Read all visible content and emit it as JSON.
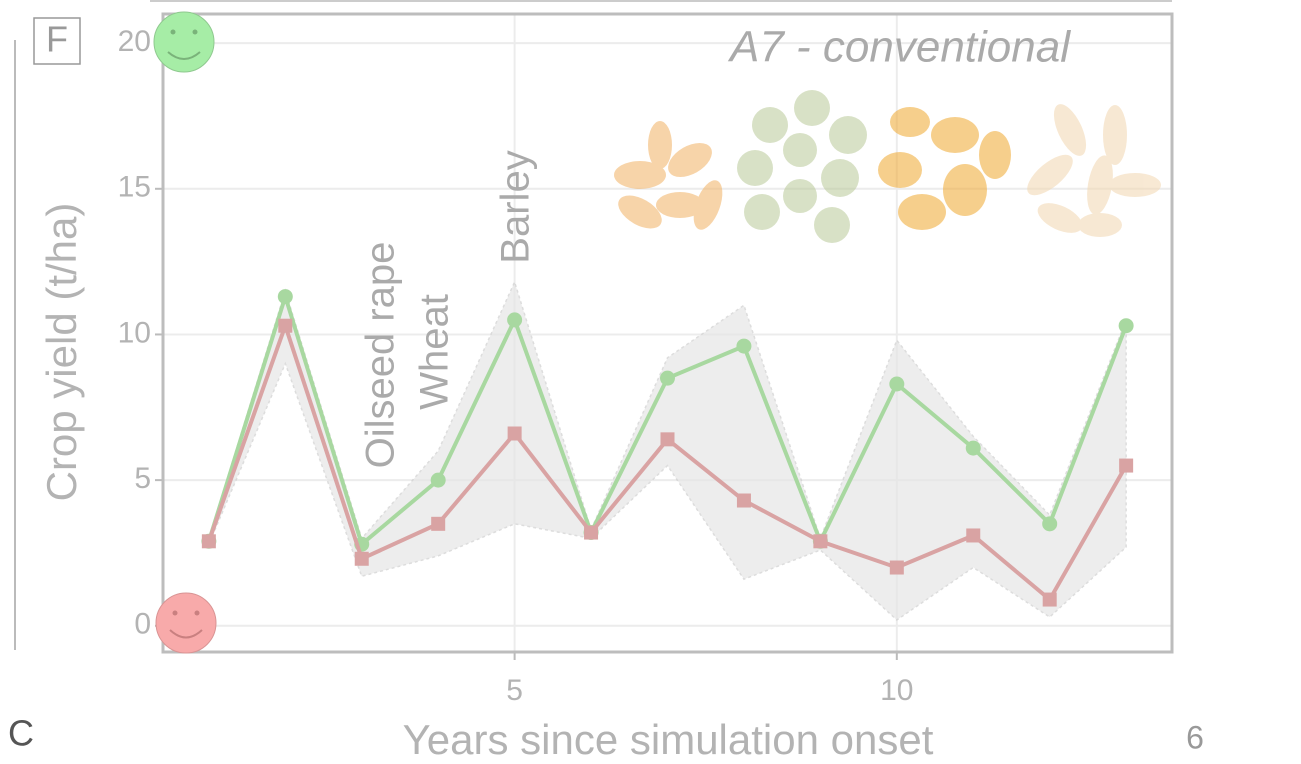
{
  "panel_label": "F",
  "stray_left": "C",
  "stray_right": "6",
  "chart_data": {
    "type": "line",
    "title": "A7 - conventional",
    "x_label": "Years since simulation onset",
    "y_label": "Crop yield (t/ha)",
    "annotations": [
      "Oilseed rape",
      "Wheat",
      "Barley"
    ],
    "x": [
      1,
      2,
      3,
      4,
      5,
      6,
      7,
      8,
      9,
      10,
      11,
      12,
      13
    ],
    "xlim": [
      0.4,
      13.6
    ],
    "ylim": [
      -0.9,
      21
    ],
    "xticks": [
      5,
      10
    ],
    "yticks": [
      0,
      5,
      10,
      15,
      20
    ],
    "grid": true,
    "band": {
      "color": "#e6e6e6",
      "lower": [
        2.8,
        9,
        1.7,
        2.4,
        3.5,
        3.0,
        5.5,
        1.6,
        2.6,
        0.2,
        2.0,
        0.3,
        2.7
      ],
      "upper": [
        3,
        11.5,
        3,
        6,
        11.8,
        3.3,
        9.2,
        11,
        3,
        9.8,
        6.5,
        3.8,
        10.5
      ]
    },
    "series": [
      {
        "color": "#a8d8a0",
        "marker": "circle",
        "values": [
          2.9,
          11.3,
          2.8,
          5.0,
          10.5,
          3.2,
          8.5,
          9.6,
          2.9,
          8.3,
          6.1,
          3.5,
          10.3
        ]
      },
      {
        "color": "#d9a3a3",
        "marker": "square",
        "values": [
          2.9,
          10.3,
          2.3,
          3.5,
          6.6,
          3.2,
          6.4,
          4.3,
          2.9,
          2.0,
          3.1,
          0.9,
          5.5
        ]
      }
    ]
  }
}
